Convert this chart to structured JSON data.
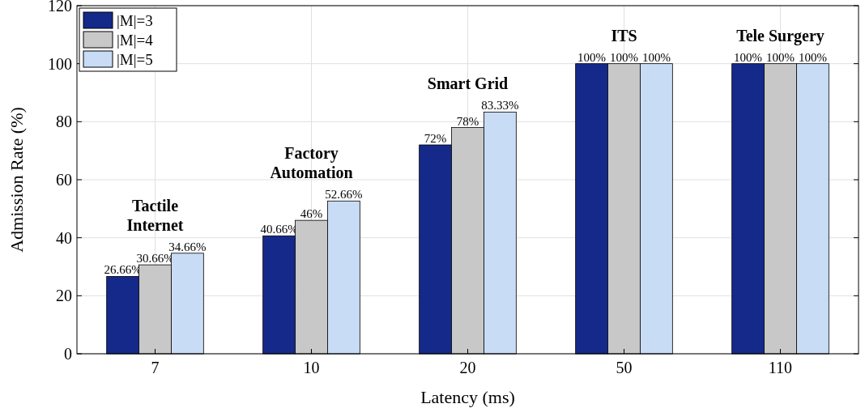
{
  "chart_data": {
    "type": "bar",
    "xlabel": "Latency (ms)",
    "ylabel": "Admission Rate (%)",
    "categories": [
      "7",
      "10",
      "20",
      "50",
      "110"
    ],
    "series": [
      {
        "name": "|M|=3",
        "color": "#15298a",
        "values": [
          26.66,
          40.66,
          72,
          100,
          100
        ],
        "value_labels": [
          "26.66%",
          "40.66%",
          "72%",
          "100%",
          "100%"
        ]
      },
      {
        "name": "|M|=4",
        "color": "#c8c8c8",
        "values": [
          30.66,
          46,
          78,
          100,
          100
        ],
        "value_labels": [
          "30.66%",
          "46%",
          "78%",
          "100%",
          "100%"
        ]
      },
      {
        "name": "|M|=5",
        "color": "#c9dcf5",
        "values": [
          34.66,
          52.66,
          83.33,
          100,
          100
        ],
        "value_labels": [
          "34.66%",
          "52.66%",
          "83.33%",
          "100%",
          "100%"
        ]
      }
    ],
    "ylim": [
      0,
      120
    ],
    "yticks": [
      0,
      20,
      40,
      60,
      80,
      100,
      120
    ],
    "grid": true,
    "legend": "top left",
    "annotations": [
      "Tactile\nInternet",
      "Factory\nAutomation",
      "Smart Grid",
      "ITS",
      "Tele Surgery"
    ]
  }
}
